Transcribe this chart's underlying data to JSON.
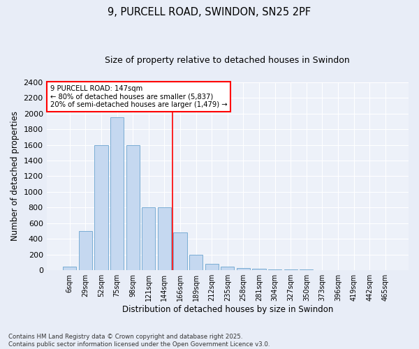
{
  "title1": "9, PURCELL ROAD, SWINDON, SN25 2PF",
  "title2": "Size of property relative to detached houses in Swindon",
  "xlabel": "Distribution of detached houses by size in Swindon",
  "ylabel": "Number of detached properties",
  "categories": [
    "6sqm",
    "29sqm",
    "52sqm",
    "75sqm",
    "98sqm",
    "121sqm",
    "144sqm",
    "166sqm",
    "189sqm",
    "212sqm",
    "235sqm",
    "258sqm",
    "281sqm",
    "304sqm",
    "327sqm",
    "350sqm",
    "373sqm",
    "396sqm",
    "419sqm",
    "442sqm",
    "465sqm"
  ],
  "values": [
    50,
    500,
    1600,
    1950,
    1600,
    800,
    800,
    480,
    200,
    80,
    50,
    30,
    20,
    15,
    10,
    10,
    5,
    5,
    2,
    2,
    3
  ],
  "bar_color": "#c5d8f0",
  "bar_edge_color": "#7aadd4",
  "annotation_line1": "9 PURCELL ROAD: 147sqm",
  "annotation_line2": "← 80% of detached houses are smaller (5,837)",
  "annotation_line3": "20% of semi-detached houses are larger (1,479) →",
  "ylim": [
    0,
    2400
  ],
  "yticks": [
    0,
    200,
    400,
    600,
    800,
    1000,
    1200,
    1400,
    1600,
    1800,
    2000,
    2200,
    2400
  ],
  "bg_color": "#e8edf7",
  "plot_bg_color": "#edf1f9",
  "footer1": "Contains HM Land Registry data © Crown copyright and database right 2025.",
  "footer2": "Contains public sector information licensed under the Open Government Licence v3.0.",
  "red_line_x": 6.5
}
